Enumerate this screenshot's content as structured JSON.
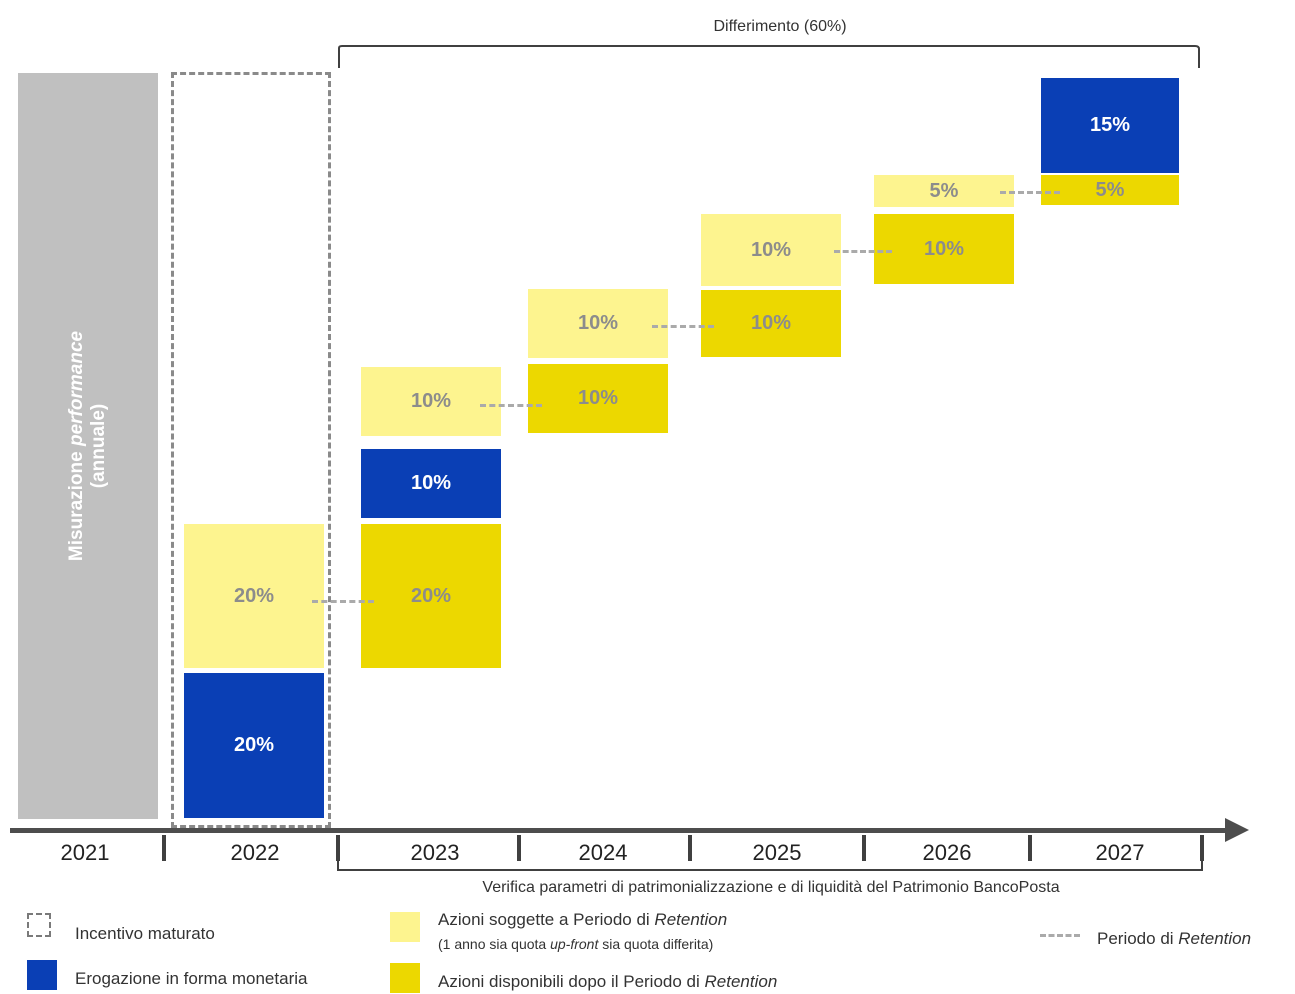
{
  "deferral_label": "Differimento  (60%)",
  "measurement_label_1": "Misurazione",
  "measurement_label_italic": "performance",
  "measurement_label_2": "(annuale)",
  "years": [
    "2021",
    "2022",
    "2023",
    "2024",
    "2025",
    "2026",
    "2027"
  ],
  "boxes": {
    "y2022_cash": "20%",
    "y2022_retention": "20%",
    "y2023_available": "20%",
    "y2023_cash": "10%",
    "y2023_retention": "10%",
    "y2024_available": "10%",
    "y2024_retention": "10%",
    "y2025_available": "10%",
    "y2025_retention": "10%",
    "y2026_available": "10%",
    "y2026_retention": "5%",
    "y2027_available": "5%",
    "y2027_cash": "15%"
  },
  "verification_note": "Verifica parametri di patrimonializzazione e di liquidità del Patrimonio BancoPosta",
  "legend": {
    "accrued": "Incentivo  maturato",
    "cash": "Erogazione  in forma monetaria",
    "retention_shares_prefix": "Azioni soggette a Periodo di ",
    "retention_italic": "Retention",
    "retention_note_prefix": "(1 anno sia quota ",
    "retention_note_upfront": "up-front",
    "retention_note_middle": " sia quota differita)",
    "available_prefix": "Azioni disponibili dopo il Periodo di ",
    "available_italic": "Retention",
    "period_prefix": "Periodo di ",
    "period_italic": "Retention"
  },
  "colors": {
    "blue": "#0a3fb5",
    "light_yellow": "#fdf48f",
    "dark_yellow": "#ecd800",
    "grey_bar": "#c0c0c0"
  }
}
